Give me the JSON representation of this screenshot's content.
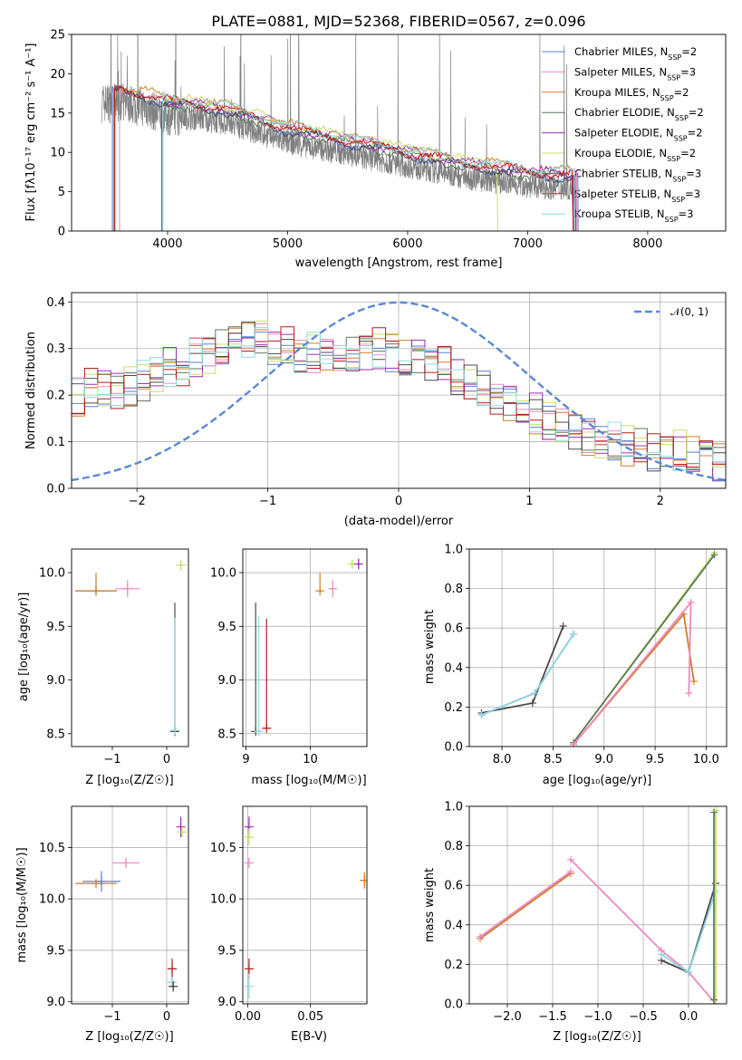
{
  "colors": [
    "#5b7fd6",
    "#ef88c0",
    "#cf7f28",
    "#5a7a5a",
    "#9a2fb0",
    "#c8de6a",
    "#4a4a4a",
    "#b71c1c",
    "#8fd8dc"
  ],
  "chart_data": [
    {
      "type": "line",
      "title": "PLATE=0881, MJD=52368, FIBERID=0567, z=0.096",
      "xlabel": "wavelength [Angstrom, rest frame]",
      "ylabel": "Flux [fλ10⁻¹⁷ erg cm⁻² s⁻¹ A⁻¹]",
      "xlim": [
        3200,
        8650
      ],
      "ylim": [
        0,
        25
      ],
      "xticks": [
        4000,
        5000,
        6000,
        7000,
        8000
      ],
      "yticks": [
        0,
        5,
        10,
        15,
        20,
        25
      ],
      "grid": false,
      "legend_position": "upper-right",
      "legend": [
        "Chabrier MILES, N_SSP=2",
        "Salpeter MILES, N_SSP=3",
        "Kroupa MILES, N_SSP=2",
        "Chabrier ELODIE, N_SSP=2",
        "Salpeter ELODIE, N_SSP=2",
        "Kroupa ELODIE, N_SSP=2",
        "Chabrier STELIB, N_SSP=3",
        "Salpeter STELIB, N_SSP=3",
        "Kroupa STELIB, N_SSP=3"
      ],
      "data_series": {
        "name": "data",
        "color": "#808080",
        "x_range": [
          3450,
          7400
        ]
      },
      "model_curve": {
        "x": [
          3450,
          3600,
          3800,
          3950,
          4050,
          4300,
          4600,
          5000,
          5500,
          6000,
          6500,
          7000,
          7400
        ],
        "y": [
          17.5,
          17.5,
          17,
          16,
          15.8,
          15.5,
          14.5,
          12.5,
          11,
          9.5,
          8,
          7,
          6.5
        ]
      }
    },
    {
      "type": "histogram",
      "xlabel": "(data-model)/error",
      "ylabel": "Normed distribution",
      "xlim": [
        -2.5,
        2.5
      ],
      "ylim": [
        0,
        0.42
      ],
      "xticks": [
        -2,
        -1,
        0,
        1,
        2
      ],
      "yticks": [
        0.0,
        0.1,
        0.2,
        0.3,
        0.4
      ],
      "grid": true,
      "legend": [
        "𝒩(0, 1)"
      ],
      "legend_position": "upper-right",
      "bin_width": 0.1,
      "base_counts": [
        0.2,
        0.22,
        0.22,
        0.21,
        0.22,
        0.23,
        0.24,
        0.26,
        0.26,
        0.28,
        0.28,
        0.3,
        0.31,
        0.32,
        0.32,
        0.31,
        0.31,
        0.29,
        0.29,
        0.28,
        0.27,
        0.28,
        0.29,
        0.3,
        0.29,
        0.28,
        0.28,
        0.27,
        0.26,
        0.24,
        0.22,
        0.21,
        0.2,
        0.19,
        0.18,
        0.16,
        0.14,
        0.13,
        0.12,
        0.11,
        0.1,
        0.1,
        0.09,
        0.09,
        0.08,
        0.08,
        0.08,
        0.07,
        0.07,
        0.06
      ]
    },
    {
      "type": "scatter",
      "xlabel": "Z [log₁₀(Z/Z☉)]",
      "ylabel": "age  [log₁₀(age/yr)]",
      "xlim": [
        -1.75,
        0.4
      ],
      "ylim": [
        8.38,
        10.22
      ],
      "xticks": [
        -1,
        0
      ],
      "yticks": [
        8.5,
        9.0,
        9.5,
        10.0
      ],
      "points": [
        {
          "x": -1.3,
          "y": 9.83,
          "xerr": 0.38,
          "yerr": [
            0.01,
            0.02
          ],
          "c": 3
        },
        {
          "x": -1.3,
          "y": 9.83,
          "xerr": 0.38,
          "yerr": [
            0.0,
            0.17
          ],
          "c": 2
        },
        {
          "x": -0.72,
          "y": 9.85,
          "xerr": 0.23,
          "yerr": 0.08,
          "c": 1
        },
        {
          "x": 0.26,
          "y": 10.07,
          "xerr": 0.02,
          "yerr": 0.05,
          "c": 5
        },
        {
          "x": 0.15,
          "y": 8.52,
          "xerr": 0.02,
          "yerr": [
            0.0,
            1.2
          ],
          "c": 6
        },
        {
          "x": 0.15,
          "y": 8.53,
          "xerr": 0.03,
          "yerr": [
            0.0,
            1.05
          ],
          "c": 8
        }
      ]
    },
    {
      "type": "scatter",
      "xlabel": "mass [log₁₀(M/M☉)]",
      "ylabel": "",
      "xlim": [
        8.95,
        10.88
      ],
      "ylim": [
        8.38,
        10.22
      ],
      "xticks": [
        9,
        10
      ],
      "yticks": [
        8.5,
        9.0,
        9.5,
        10.0
      ],
      "points": [
        {
          "x": 10.15,
          "y": 9.83,
          "xerr": 0.03,
          "yerr": [
            0.0,
            0.17
          ],
          "c": 2
        },
        {
          "x": 10.35,
          "y": 9.85,
          "xerr": 0.05,
          "yerr": 0.08,
          "c": 1
        },
        {
          "x": 10.65,
          "y": 10.08,
          "xerr": 0.05,
          "yerr": 0.04,
          "c": 5
        },
        {
          "x": 10.75,
          "y": 10.08,
          "xerr": 0.05,
          "yerr": 0.05,
          "c": 4
        },
        {
          "x": 9.15,
          "y": 8.52,
          "xerr": 0.05,
          "yerr": [
            0.0,
            1.2
          ],
          "c": 6
        },
        {
          "x": 9.2,
          "y": 8.52,
          "xerr": 0.05,
          "yerr": [
            0.0,
            1.08
          ],
          "c": 8
        },
        {
          "x": 9.32,
          "y": 8.55,
          "xerr": 0.05,
          "yerr": [
            0.0,
            1.02
          ],
          "c": 7
        }
      ]
    },
    {
      "type": "line",
      "xlabel": "age  [log₁₀(age/yr)]",
      "ylabel": "mass weight",
      "xlim": [
        7.68,
        10.2
      ],
      "ylim": [
        0,
        1
      ],
      "xticks": [
        8.0,
        8.5,
        9.0,
        9.5,
        10.0
      ],
      "yticks": [
        0.0,
        0.2,
        0.4,
        0.6,
        0.8,
        1.0
      ],
      "grid": true,
      "series": [
        {
          "c": 6,
          "x": [
            7.8,
            8.3,
            8.6
          ],
          "y": [
            0.17,
            0.22,
            0.61
          ]
        },
        {
          "c": 0,
          "x": [
            7.8,
            8.32,
            8.7
          ],
          "y": [
            0.16,
            0.27,
            0.57
          ]
        },
        {
          "c": 8,
          "x": [
            7.8,
            8.32,
            8.7
          ],
          "y": [
            0.16,
            0.27,
            0.57
          ]
        },
        {
          "c": 5,
          "x": [
            8.7,
            10.08
          ],
          "y": [
            0.02,
            0.98
          ]
        },
        {
          "c": 3,
          "x": [
            8.7,
            10.08
          ],
          "y": [
            0.02,
            0.97
          ]
        },
        {
          "c": 2,
          "x": [
            8.7,
            9.78,
            9.88
          ],
          "y": [
            0.01,
            0.67,
            0.33
          ]
        },
        {
          "c": 1,
          "x": [
            8.7,
            9.85,
            9.83
          ],
          "y": [
            0.01,
            0.73,
            0.27
          ]
        }
      ]
    },
    {
      "type": "scatter",
      "xlabel": "Z [log₁₀(Z/Z☉)]",
      "ylabel": "mass [log₁₀(M/M☉)]",
      "xlim": [
        -1.75,
        0.4
      ],
      "ylim": [
        8.98,
        10.9
      ],
      "xticks": [
        -1,
        0
      ],
      "yticks": [
        9.0,
        9.5,
        10.0,
        10.5
      ],
      "points": [
        {
          "x": -1.3,
          "y": 10.15,
          "xerr": 0.38,
          "yerr": 0.02,
          "c": 2
        },
        {
          "x": -1.2,
          "y": 10.17,
          "xerr": 0.35,
          "yerr": 0.1,
          "c": 0
        },
        {
          "x": -0.75,
          "y": 10.35,
          "xerr": 0.25,
          "yerr": 0.05,
          "c": 1
        },
        {
          "x": 0.26,
          "y": 10.7,
          "xerr": 0.01,
          "yerr": 0.1,
          "c": 4
        },
        {
          "x": 0.28,
          "y": 10.65,
          "xerr": 0.01,
          "yerr": 0.05,
          "c": 5
        },
        {
          "x": 0.1,
          "y": 9.32,
          "xerr": 0.08,
          "yerr": 0.1,
          "c": 7
        },
        {
          "x": 0.1,
          "y": 9.19,
          "xerr": 0.08,
          "yerr": 0.05,
          "c": 8
        },
        {
          "x": 0.12,
          "y": 9.15,
          "xerr": 0.08,
          "yerr": 0.05,
          "c": 6
        }
      ]
    },
    {
      "type": "scatter",
      "xlabel": "E(B-V)",
      "ylabel": "",
      "xlim": [
        -0.004,
        0.095
      ],
      "ylim": [
        8.98,
        10.9
      ],
      "xticks": [
        0.0,
        0.05
      ],
      "yticks": [
        9.0,
        9.5,
        10.0,
        10.5
      ],
      "points": [
        {
          "x": 0.001,
          "y": 10.7,
          "xerr": 0,
          "yerr": 0.1,
          "c": 4
        },
        {
          "x": 0.001,
          "y": 10.6,
          "xerr": 0,
          "yerr": 0.08,
          "c": 5
        },
        {
          "x": 0.001,
          "y": 10.35,
          "xerr": 0,
          "yerr": 0.05,
          "c": 1
        },
        {
          "x": 0.001,
          "y": 9.32,
          "xerr": 0,
          "yerr": 0.1,
          "c": 7
        },
        {
          "x": 0.001,
          "y": 9.15,
          "xerr": 0,
          "yerr": 0.12,
          "c": 8
        },
        {
          "x": 0.093,
          "y": 10.18,
          "xerr": 0,
          "yerr": 0.08,
          "c": 2
        }
      ]
    },
    {
      "type": "line",
      "xlabel": "Z [log₁₀(Z/Z☉)]",
      "ylabel": "mass weight",
      "xlim": [
        -2.42,
        0.42
      ],
      "ylim": [
        0,
        1
      ],
      "xticks": [
        -2.0,
        -1.5,
        -1.0,
        -0.5,
        0.0
      ],
      "yticks": [
        0.0,
        0.2,
        0.4,
        0.6,
        0.8,
        1.0
      ],
      "grid": true,
      "series": [
        {
          "c": 2,
          "x": [
            -2.3,
            -1.3
          ],
          "y": [
            0.33,
            0.66
          ]
        },
        {
          "c": 1,
          "x": [
            -2.3,
            -1.3
          ],
          "y": [
            0.34,
            0.67
          ]
        },
        {
          "c": 1,
          "x": [
            -1.3,
            -0.3,
            0.0,
            0.3
          ],
          "y": [
            0.73,
            0.27,
            0.16,
            0.0
          ]
        },
        {
          "c": 6,
          "x": [
            -0.3,
            0.0,
            0.3
          ],
          "y": [
            0.22,
            0.16,
            0.61
          ]
        },
        {
          "c": 8,
          "x": [
            -0.3,
            0.0,
            0.3
          ],
          "y": [
            0.25,
            0.16,
            0.57
          ]
        },
        {
          "c": 5,
          "x": [
            0.3,
            0.3
          ],
          "y": [
            0.0,
            0.98
          ]
        },
        {
          "c": 3,
          "x": [
            0.28,
            0.28
          ],
          "y": [
            0.02,
            0.97
          ]
        }
      ]
    }
  ]
}
